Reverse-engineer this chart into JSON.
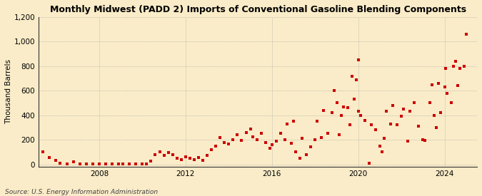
{
  "title": "Monthly Midwest (PADD 2) Imports of Conventional Gasoline Blending Components",
  "ylabel": "Thousand Barrels",
  "source": "Source: U.S. Energy Information Administration",
  "background_color": "#faecc8",
  "marker_color": "#cc0000",
  "ylim": [
    -20,
    1200
  ],
  "yticks": [
    0,
    200,
    400,
    600,
    800,
    1000,
    1200
  ],
  "ytick_labels": [
    "0",
    "200",
    "400",
    "600",
    "800",
    "1,000",
    "1,200"
  ],
  "xticks": [
    2008,
    2012,
    2016,
    2020,
    2024
  ],
  "xlim": [
    2005.2,
    2025.5
  ],
  "data": [
    [
      2005.1,
      45
    ],
    [
      2005.4,
      100
    ],
    [
      2005.7,
      55
    ],
    [
      2006.0,
      30
    ],
    [
      2006.2,
      10
    ],
    [
      2006.5,
      5
    ],
    [
      2006.8,
      20
    ],
    [
      2007.1,
      5
    ],
    [
      2007.4,
      5
    ],
    [
      2007.7,
      5
    ],
    [
      2008.0,
      5
    ],
    [
      2008.3,
      5
    ],
    [
      2008.6,
      5
    ],
    [
      2008.9,
      5
    ],
    [
      2009.1,
      5
    ],
    [
      2009.4,
      5
    ],
    [
      2009.7,
      5
    ],
    [
      2010.0,
      5
    ],
    [
      2010.2,
      5
    ],
    [
      2010.4,
      25
    ],
    [
      2010.6,
      80
    ],
    [
      2010.8,
      100
    ],
    [
      2011.0,
      70
    ],
    [
      2011.2,
      95
    ],
    [
      2011.4,
      80
    ],
    [
      2011.6,
      50
    ],
    [
      2011.8,
      40
    ],
    [
      2012.0,
      60
    ],
    [
      2012.2,
      50
    ],
    [
      2012.4,
      40
    ],
    [
      2012.6,
      55
    ],
    [
      2012.8,
      30
    ],
    [
      2013.0,
      70
    ],
    [
      2013.2,
      120
    ],
    [
      2013.4,
      150
    ],
    [
      2013.6,
      220
    ],
    [
      2013.8,
      180
    ],
    [
      2014.0,
      165
    ],
    [
      2014.2,
      200
    ],
    [
      2014.4,
      240
    ],
    [
      2014.6,
      195
    ],
    [
      2014.8,
      260
    ],
    [
      2015.0,
      290
    ],
    [
      2015.1,
      225
    ],
    [
      2015.3,
      200
    ],
    [
      2015.5,
      250
    ],
    [
      2015.7,
      180
    ],
    [
      2015.9,
      130
    ],
    [
      2016.0,
      160
    ],
    [
      2016.2,
      190
    ],
    [
      2016.4,
      250
    ],
    [
      2016.6,
      200
    ],
    [
      2016.7,
      330
    ],
    [
      2016.9,
      170
    ],
    [
      2017.0,
      350
    ],
    [
      2017.1,
      100
    ],
    [
      2017.3,
      50
    ],
    [
      2017.4,
      210
    ],
    [
      2017.6,
      80
    ],
    [
      2017.8,
      145
    ],
    [
      2018.0,
      200
    ],
    [
      2018.1,
      350
    ],
    [
      2018.3,
      220
    ],
    [
      2018.4,
      440
    ],
    [
      2018.6,
      250
    ],
    [
      2018.8,
      420
    ],
    [
      2019.0,
      500
    ],
    [
      2019.1,
      240
    ],
    [
      2019.2,
      400
    ],
    [
      2019.3,
      470
    ],
    [
      2019.5,
      460
    ],
    [
      2019.6,
      320
    ],
    [
      2019.8,
      530
    ],
    [
      2020.0,
      430
    ],
    [
      2020.1,
      400
    ],
    [
      2020.3,
      360
    ],
    [
      2020.5,
      10
    ],
    [
      2020.6,
      320
    ],
    [
      2020.8,
      280
    ],
    [
      2021.0,
      150
    ],
    [
      2021.1,
      100
    ],
    [
      2021.2,
      210
    ],
    [
      2021.3,
      430
    ],
    [
      2021.5,
      330
    ],
    [
      2021.6,
      480
    ],
    [
      2021.8,
      320
    ],
    [
      2022.0,
      390
    ],
    [
      2022.1,
      450
    ],
    [
      2022.3,
      190
    ],
    [
      2022.4,
      430
    ],
    [
      2022.6,
      500
    ],
    [
      2022.8,
      310
    ],
    [
      2023.0,
      200
    ],
    [
      2023.1,
      195
    ],
    [
      2023.3,
      500
    ],
    [
      2023.5,
      400
    ],
    [
      2023.6,
      300
    ],
    [
      2023.8,
      420
    ],
    [
      2024.0,
      630
    ],
    [
      2024.05,
      780
    ],
    [
      2024.1,
      580
    ],
    [
      2024.3,
      500
    ],
    [
      2024.4,
      800
    ],
    [
      2024.5,
      840
    ],
    [
      2024.6,
      640
    ],
    [
      2024.7,
      780
    ],
    [
      2024.9,
      800
    ],
    [
      2025.0,
      1060
    ],
    [
      2018.9,
      600
    ],
    [
      2019.7,
      720
    ],
    [
      2019.9,
      690
    ],
    [
      2020.0,
      850
    ],
    [
      2023.4,
      650
    ],
    [
      2023.7,
      660
    ]
  ]
}
